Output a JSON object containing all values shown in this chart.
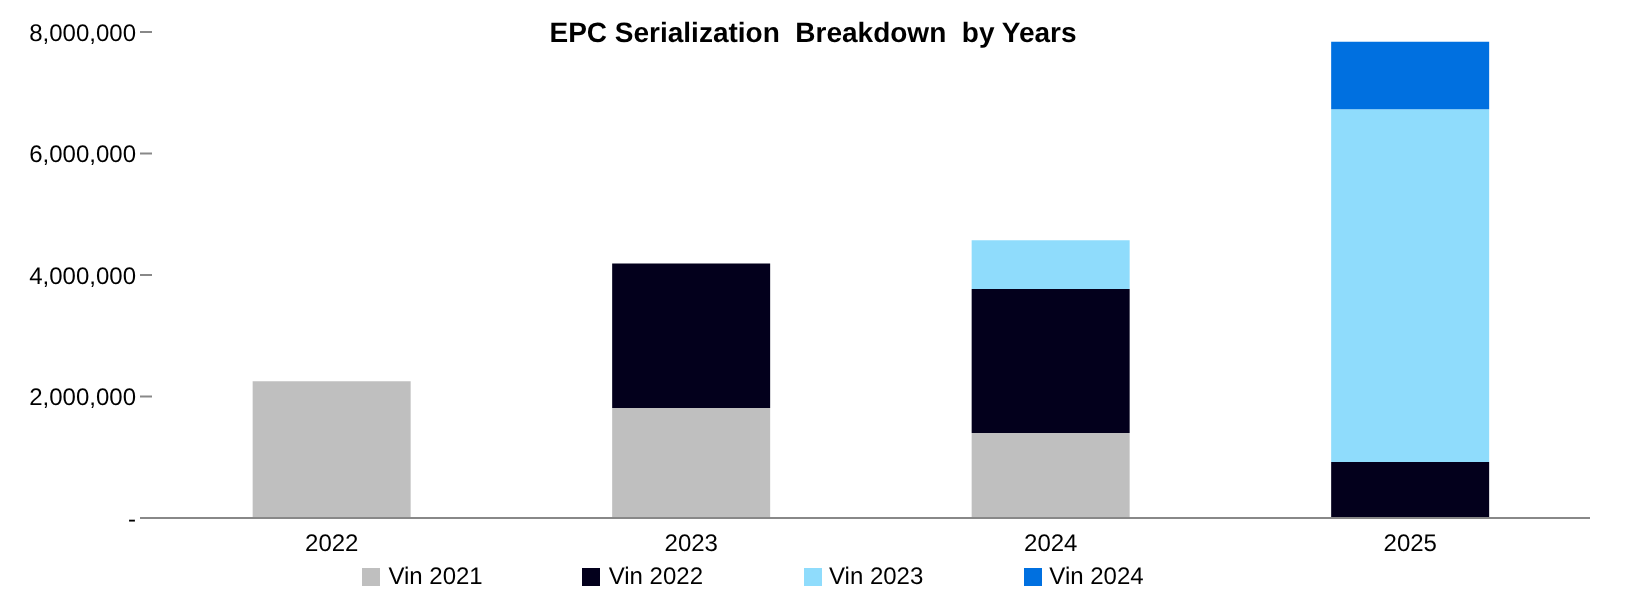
{
  "chart_data": {
    "type": "bar",
    "title": "EPC Serialization  Breakdown  by Years",
    "categories": [
      "2022",
      "2023",
      "2024",
      "2025"
    ],
    "stacked": true,
    "series": [
      {
        "name": "Vin 2021",
        "color": "#bfbfbf",
        "values": [
          2250000,
          1810000,
          1400000,
          null
        ]
      },
      {
        "name": "Vin 2022",
        "color": "#03001c",
        "values": [
          null,
          2380000,
          2370000,
          920000
        ]
      },
      {
        "name": "Vin 2023",
        "color": "#8fdcfc",
        "values": [
          null,
          null,
          800000,
          5810000
        ]
      },
      {
        "name": "Vin 2024",
        "color": "#0070e0",
        "values": [
          null,
          null,
          null,
          1110000
        ]
      }
    ],
    "ylim": [
      0,
      8000000
    ],
    "yticks": [
      {
        "value": 0,
        "label": "-"
      },
      {
        "value": 2000000,
        "label": "2,000,000"
      },
      {
        "value": 4000000,
        "label": "4,000,000"
      },
      {
        "value": 6000000,
        "label": "6,000,000"
      },
      {
        "value": 8000000,
        "label": "8,000,000"
      }
    ],
    "grid": false,
    "legend": "bottom"
  }
}
